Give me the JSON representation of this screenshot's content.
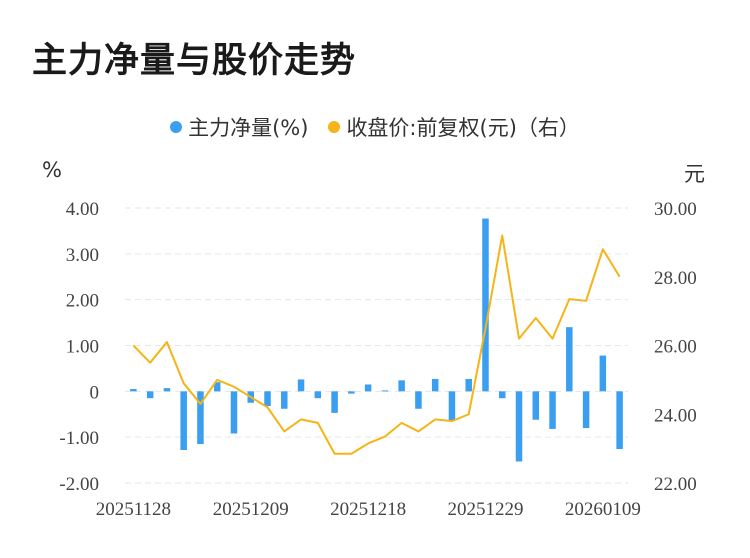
{
  "title": "主力净量与股价走势",
  "colors": {
    "bar": "#3a9ff0",
    "line": "#f5b417",
    "grid": "#e6e6e6"
  },
  "chart_data": {
    "type": "bar+line",
    "title": "主力净量与股价走势",
    "left_unit": "%",
    "right_unit": "元",
    "legend": [
      "主力净量(%)",
      "收盘价:前复权(元)（右）"
    ],
    "y_left_ticks": [
      "4.00",
      "3.00",
      "2.00",
      "1.00",
      "0",
      "-1.00",
      "-2.00"
    ],
    "y_right_ticks": [
      "30.00",
      "28.00",
      "26.00",
      "24.00",
      "22.00"
    ],
    "ylim_left": [
      -2,
      4
    ],
    "ylim_right": [
      22,
      30
    ],
    "x_tick_labels": [
      "20251128",
      "20251209",
      "20251218",
      "20251229",
      "20260109"
    ],
    "x_tick_index": [
      0,
      7,
      14,
      21,
      28
    ],
    "grid": true,
    "series": [
      {
        "name": "主力净量(%)",
        "axis": "left",
        "type": "bar",
        "values": [
          0.05,
          -0.15,
          0.07,
          -1.28,
          -1.15,
          0.2,
          -0.92,
          -0.25,
          -0.32,
          -0.38,
          0.26,
          -0.15,
          -0.47,
          -0.05,
          0.15,
          0.02,
          0.24,
          -0.38,
          0.27,
          -0.65,
          0.27,
          3.77,
          -0.15,
          -1.53,
          -0.62,
          -0.82,
          1.4,
          -0.8,
          0.78,
          -1.26
        ]
      },
      {
        "name": "收盘价:前复权(元)（右）",
        "axis": "right",
        "type": "line",
        "values": [
          26.0,
          25.5,
          26.1,
          24.9,
          24.3,
          25.0,
          24.8,
          24.5,
          24.2,
          23.5,
          23.85,
          23.75,
          22.85,
          22.85,
          23.15,
          23.35,
          23.75,
          23.5,
          23.85,
          23.8,
          24.0,
          26.5,
          29.2,
          26.2,
          26.8,
          26.2,
          27.35,
          27.3,
          28.8,
          28.0
        ]
      }
    ]
  }
}
